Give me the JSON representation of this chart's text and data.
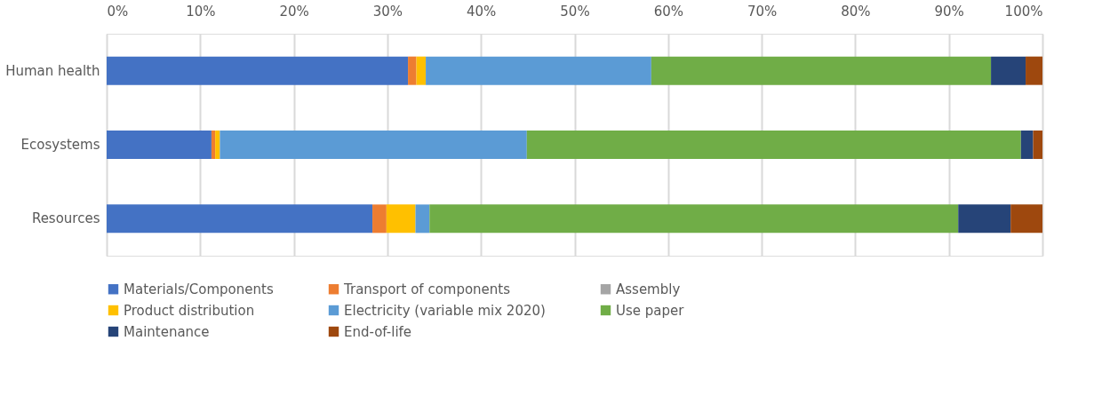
{
  "chart_data": {
    "type": "bar",
    "orientation": "horizontal",
    "stacked": true,
    "categories": [
      "Human health",
      "Ecosystems",
      "Resources"
    ],
    "series": [
      {
        "name": "Materials/Components",
        "color": "#4472c4",
        "values": [
          32.2,
          11.2,
          28.4
        ]
      },
      {
        "name": "Transport of components",
        "color": "#ed7d31",
        "values": [
          0.9,
          0.4,
          1.5
        ]
      },
      {
        "name": "Assembly",
        "color": "#a5a5a5",
        "values": [
          0,
          0,
          0
        ]
      },
      {
        "name": "Product distribution",
        "color": "#ffc000",
        "values": [
          1.0,
          0.5,
          3.1
        ]
      },
      {
        "name": "Electricity (variable mix 2020)",
        "color": "#5b9bd5",
        "values": [
          24.1,
          32.8,
          1.5
        ]
      },
      {
        "name": "Use paper",
        "color": "#70ad47",
        "values": [
          36.3,
          52.8,
          56.5
        ]
      },
      {
        "name": "Maintenance",
        "color": "#264478",
        "values": [
          3.7,
          1.3,
          5.6
        ]
      },
      {
        "name": "End-of-life",
        "color": "#9e480e",
        "values": [
          1.8,
          1.0,
          3.4
        ]
      }
    ],
    "xlim": [
      0,
      100
    ],
    "xticks": [
      {
        "value": 0,
        "label": "0%"
      },
      {
        "value": 10,
        "label": "10%"
      },
      {
        "value": 20,
        "label": "20%"
      },
      {
        "value": 30,
        "label": "30%"
      },
      {
        "value": 40,
        "label": "40%"
      },
      {
        "value": 50,
        "label": "50%"
      },
      {
        "value": 60,
        "label": "60%"
      },
      {
        "value": 70,
        "label": "70%"
      },
      {
        "value": 80,
        "label": "80%"
      },
      {
        "value": 90,
        "label": "90%"
      },
      {
        "value": 100,
        "label": "100%"
      }
    ],
    "grid": "x",
    "legend": "bottom"
  }
}
